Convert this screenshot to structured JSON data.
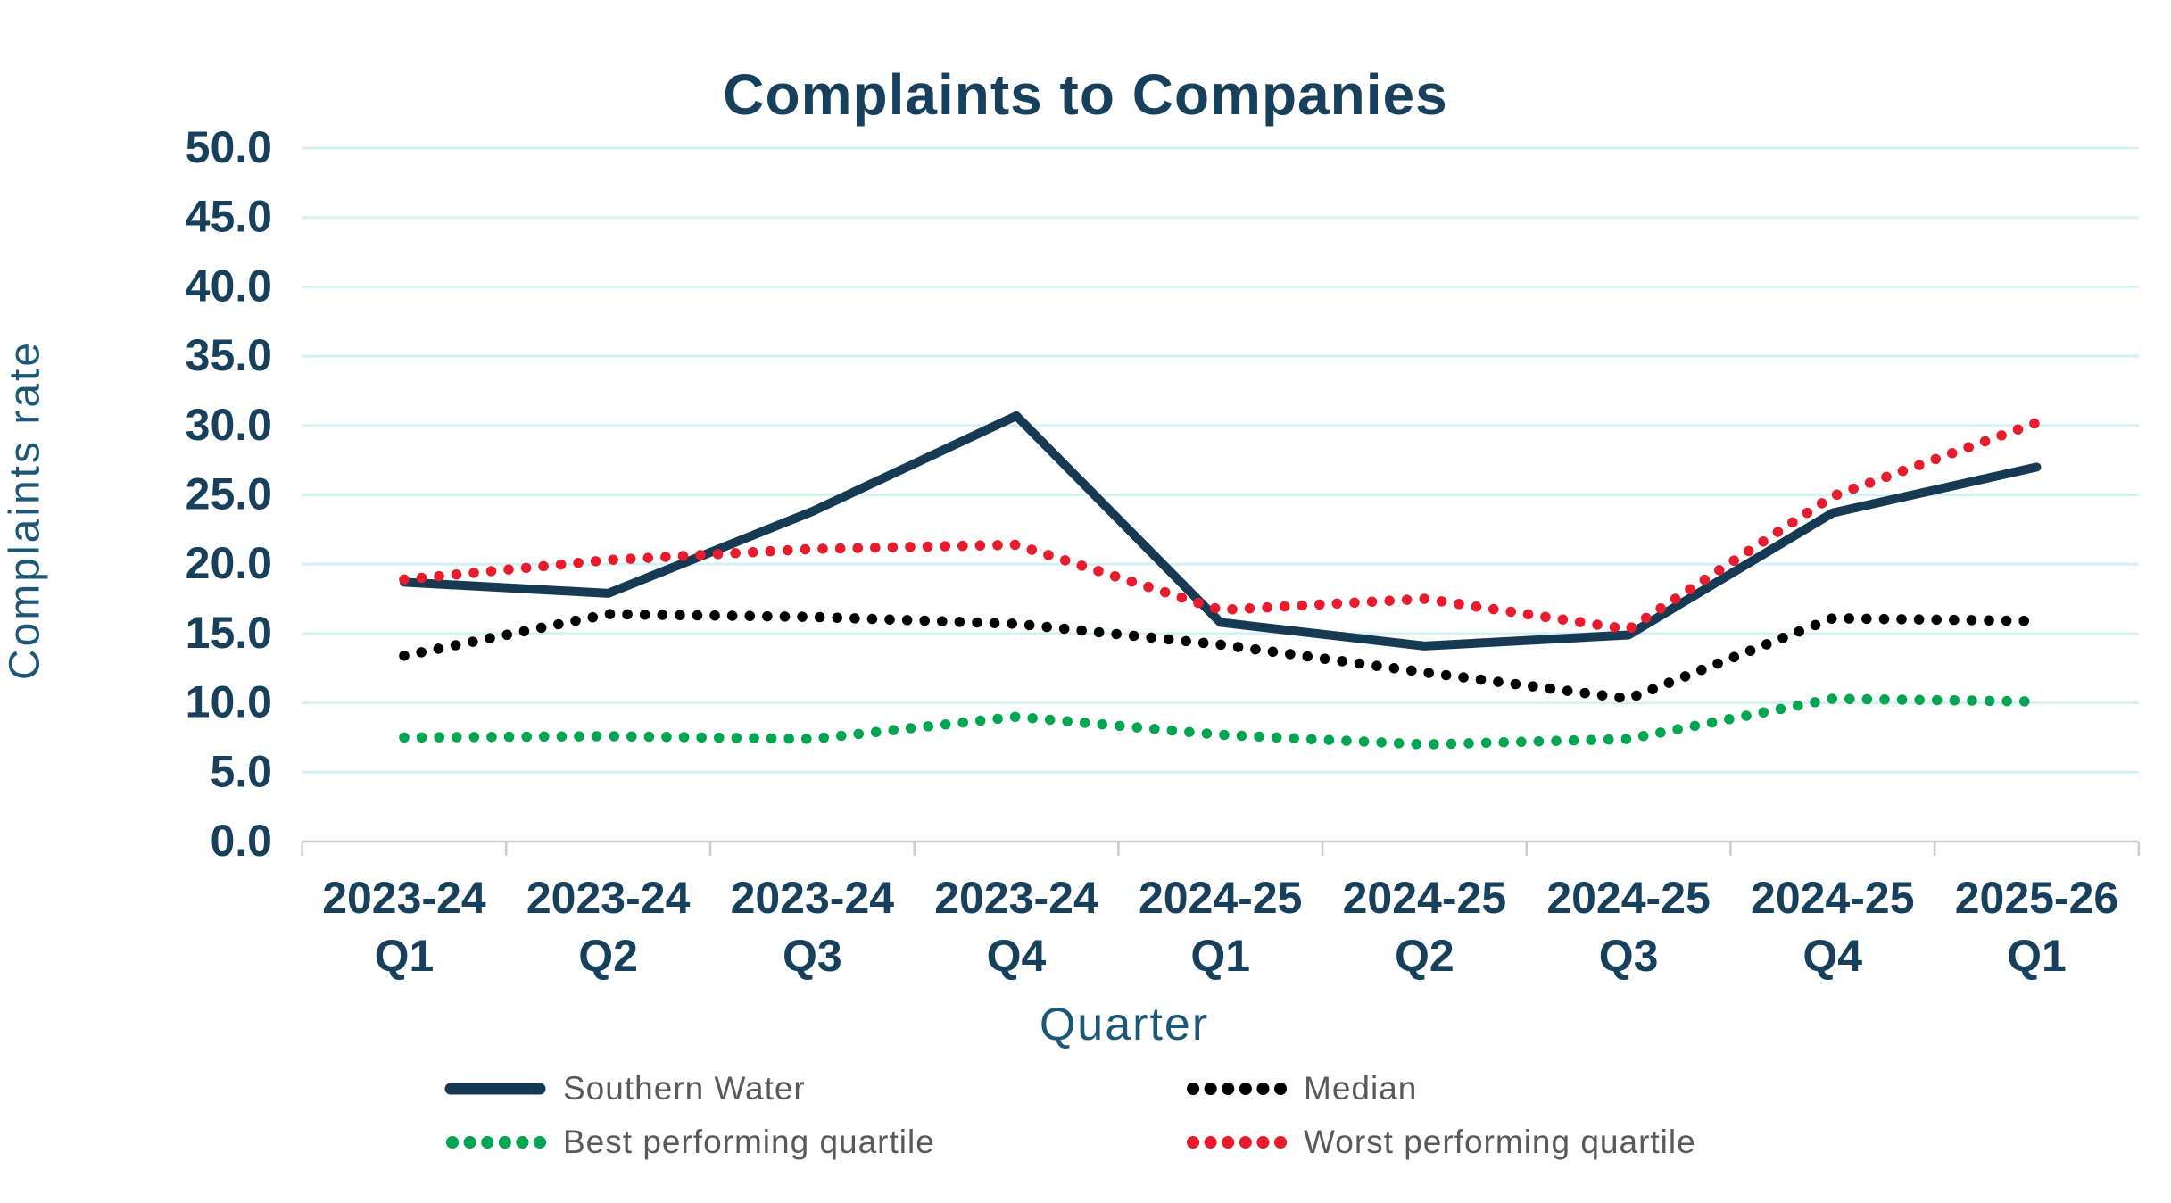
{
  "title": "Complaints to Companies",
  "colors": {
    "title_text": "#16405c",
    "tick_text": "#16405c",
    "axis_title_text": "#1d5777",
    "gridline": "#d5f0f5",
    "axis_line": "#cccccc",
    "legend_text": "#595959"
  },
  "y_axis": {
    "title": "Complaints rate",
    "tick_labels": [
      "0.0",
      "5.0",
      "10.0",
      "15.0",
      "20.0",
      "25.0",
      "30.0",
      "35.0",
      "40.0",
      "45.0",
      "50.0"
    ]
  },
  "x_axis": {
    "title": "Quarter"
  },
  "chart_data": {
    "type": "line",
    "title": "Complaints to Companies",
    "xlabel": "Quarter",
    "ylabel": "Complaints rate",
    "ylim": [
      0,
      50
    ],
    "ytick_step": 5,
    "grid": "horizontal",
    "legend_position": "bottom",
    "categories": [
      {
        "year": "2023-24",
        "quarter": "Q1"
      },
      {
        "year": "2023-24",
        "quarter": "Q2"
      },
      {
        "year": "2023-24",
        "quarter": "Q3"
      },
      {
        "year": "2023-24",
        "quarter": "Q4"
      },
      {
        "year": "2024-25",
        "quarter": "Q1"
      },
      {
        "year": "2024-25",
        "quarter": "Q2"
      },
      {
        "year": "2024-25",
        "quarter": "Q3"
      },
      {
        "year": "2024-25",
        "quarter": "Q4"
      },
      {
        "year": "2025-26",
        "quarter": "Q1"
      }
    ],
    "series": [
      {
        "name": "Southern Water",
        "color": "#163a53",
        "style": "solid",
        "values": [
          18.7,
          17.9,
          23.8,
          30.7,
          15.8,
          14.1,
          14.9,
          23.7,
          27.0
        ]
      },
      {
        "name": "Median",
        "color": "#000000",
        "style": "dotted",
        "values": [
          13.4,
          16.4,
          16.2,
          15.7,
          14.2,
          12.2,
          10.3,
          16.1,
          15.9
        ]
      },
      {
        "name": "Best performing quartile",
        "color": "#00a551",
        "style": "dotted",
        "values": [
          7.5,
          7.6,
          7.4,
          9.0,
          7.7,
          7.0,
          7.4,
          10.3,
          10.1
        ]
      },
      {
        "name": "Worst performing quartile",
        "color": "#e81c2d",
        "style": "dotted",
        "values": [
          18.9,
          20.3,
          21.1,
          21.4,
          16.7,
          17.5,
          15.3,
          24.9,
          30.2
        ]
      }
    ]
  }
}
